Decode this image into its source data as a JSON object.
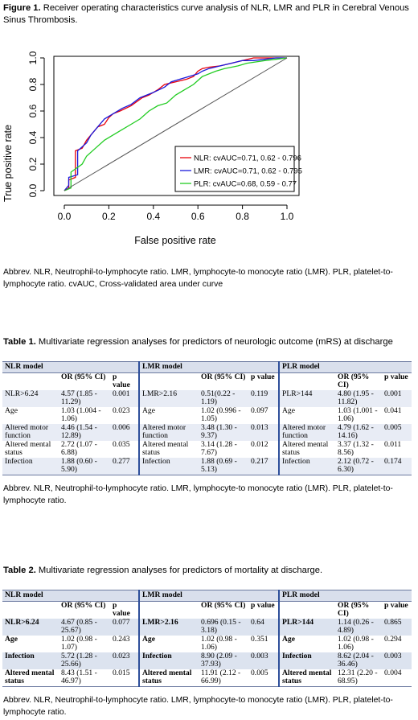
{
  "figure1": {
    "label": "Figure 1.",
    "text": " Receiver operating characteristics curve analysis of NLR, LMR and PLR in Cerebral Venous Sinus Thrombosis."
  },
  "chart_data": {
    "type": "line",
    "xlabel": "False positive rate",
    "ylabel": "True positive rate",
    "xlim": [
      0,
      1
    ],
    "ylim": [
      0,
      1
    ],
    "xticks": [
      "0.0",
      "0.2",
      "0.4",
      "0.6",
      "0.8",
      "1.0"
    ],
    "yticks": [
      "0.0",
      "0.2",
      "0.4",
      "0.6",
      "0.8",
      "1.0"
    ],
    "legend_placement": "bottom-right",
    "grid": false,
    "series": [
      {
        "name": "NLR: cvAUC=0.71, 0.62 - 0.796",
        "color": "#e8000b",
        "x": [
          0,
          0.02,
          0.02,
          0.05,
          0.05,
          0.08,
          0.1,
          0.12,
          0.15,
          0.18,
          0.2,
          0.22,
          0.25,
          0.3,
          0.35,
          0.38,
          0.42,
          0.45,
          0.5,
          0.55,
          0.58,
          0.6,
          0.62,
          0.65,
          0.7,
          0.75,
          0.8,
          0.85,
          0.9,
          0.95,
          1.0
        ],
        "y": [
          0,
          0.02,
          0.08,
          0.1,
          0.3,
          0.32,
          0.38,
          0.42,
          0.48,
          0.5,
          0.55,
          0.58,
          0.6,
          0.64,
          0.7,
          0.72,
          0.76,
          0.8,
          0.82,
          0.84,
          0.86,
          0.9,
          0.92,
          0.93,
          0.94,
          0.96,
          0.98,
          1.0,
          1.0,
          1.0,
          1.0
        ]
      },
      {
        "name": "LMR: cvAUC=0.71, 0.62 - 0.795",
        "color": "#1a1adc",
        "x": [
          0,
          0.02,
          0.02,
          0.06,
          0.06,
          0.1,
          0.12,
          0.15,
          0.18,
          0.22,
          0.26,
          0.3,
          0.34,
          0.4,
          0.45,
          0.48,
          0.52,
          0.56,
          0.6,
          0.62,
          0.65,
          0.7,
          0.75,
          0.8,
          0.85,
          0.9,
          0.95,
          1.0
        ],
        "y": [
          0,
          0.04,
          0.1,
          0.12,
          0.3,
          0.36,
          0.42,
          0.48,
          0.54,
          0.58,
          0.62,
          0.65,
          0.7,
          0.74,
          0.78,
          0.82,
          0.84,
          0.86,
          0.88,
          0.9,
          0.92,
          0.94,
          0.96,
          0.98,
          0.98,
          0.99,
          1.0,
          1.0
        ]
      },
      {
        "name": "PLR: cvAUC=0.68, 0.59 - 0.77",
        "color": "#22cc22",
        "x": [
          0,
          0.03,
          0.03,
          0.08,
          0.1,
          0.14,
          0.18,
          0.22,
          0.26,
          0.3,
          0.34,
          0.38,
          0.42,
          0.46,
          0.5,
          0.54,
          0.58,
          0.62,
          0.68,
          0.72,
          0.78,
          0.82,
          0.86,
          0.9,
          0.95,
          1.0
        ],
        "y": [
          0,
          0.02,
          0.14,
          0.2,
          0.26,
          0.32,
          0.38,
          0.42,
          0.46,
          0.5,
          0.54,
          0.6,
          0.64,
          0.66,
          0.72,
          0.76,
          0.8,
          0.86,
          0.9,
          0.92,
          0.94,
          0.96,
          0.97,
          0.98,
          0.99,
          1.0
        ]
      },
      {
        "name": "",
        "color": "#555555",
        "x": [
          0,
          1
        ],
        "y": [
          0,
          1
        ]
      }
    ]
  },
  "abbrev_fig": "Abbrev. NLR, Neutrophil-to-lymphocyte ratio. LMR, lymphocyte-to monocyte ratio (LMR). PLR, platelet-to-lymphocyte ratio. cvAUC, Cross-validated area under curve",
  "table1": {
    "label": "Table 1.",
    "caption": " Multivariate regression analyses for predictors of neurologic outcome (mRS) at discharge",
    "groups": [
      "NLR model",
      "LMR model",
      "PLR model"
    ],
    "hdr_or": "OR (95% CI)",
    "hdr_p": "p value",
    "rows": [
      [
        [
          "NLR>6.24",
          "4.57 (1.85 - 11.29)",
          "0.001"
        ],
        [
          "LMR>2.16",
          "0.51(0.22 - 1.19)",
          "0.119"
        ],
        [
          "PLR>144",
          "4.80 (1.95 - 11.82)",
          "0.001"
        ]
      ],
      [
        [
          "Age",
          "1.03 (1.004 - 1.06)",
          "0.023"
        ],
        [
          "Age",
          "1.02 (0.996 - 1.05)",
          "0.097"
        ],
        [
          "Age",
          "1.03 (1.001 - 1.06)",
          "0.041"
        ]
      ],
      [
        [
          "Altered motor function",
          "4.46 (1.54 - 12.89)",
          "0.006"
        ],
        [
          "Altered motor function",
          "3.48 (1.30 - 9.37)",
          "0.013"
        ],
        [
          "Altered motor function",
          "4.79 (1.62 - 14.16)",
          "0.005"
        ]
      ],
      [
        [
          "Altered mental status",
          "2.72 (1.07 - 6.88)",
          "0.035"
        ],
        [
          "Altered mental status",
          "3.14 (1.28 - 7.67)",
          "0.012"
        ],
        [
          "Altered mental status",
          "3.37 (1.32 - 8.56)",
          "0.011"
        ]
      ],
      [
        [
          "Infection",
          "1.88 (0.60 - 5.90)",
          "0.277"
        ],
        [
          "Infection",
          "1.88 (0.69 - 5.13)",
          "0.217"
        ],
        [
          "Infection",
          "2.12 (0.72 - 6.30)",
          "0.174"
        ]
      ]
    ],
    "abbrev": "Abbrev. NLR, Neutrophil-to-lymphocyte ratio. LMR, lymphocyte-to monocyte ratio (LMR). PLR, platelet-to-lymphocyte ratio."
  },
  "table2": {
    "label": "Table 2.",
    "caption": " Multivariate regression analyses for predictors of mortality at discharge.",
    "groups": [
      "NLR model",
      "LMR model",
      "PLR model"
    ],
    "hdr_or": "OR (95% CI)",
    "hdr_p": "p value",
    "rows": [
      [
        [
          "NLR>6.24",
          "4.67 (0.85 - 25.67)",
          "0.077"
        ],
        [
          "LMR>2.16",
          "0.696 (0.15 - 3.18)",
          "0.64"
        ],
        [
          "PLR>144",
          "1.14 (0.26 - 4.89)",
          "0.865"
        ]
      ],
      [
        [
          "Age",
          "1.02 (0.98 - 1.07)",
          "0.243"
        ],
        [
          "Age",
          "1.02 (0.98 - 1.06)",
          "0.351"
        ],
        [
          "Age",
          "1.02 (0.98 - 1.06)",
          "0.294"
        ]
      ],
      [
        [
          "Infection",
          "5.72 (1.28 - 25.66)",
          "0.023"
        ],
        [
          "Infection",
          "8.90 (2.09 - 37.93)",
          "0.003"
        ],
        [
          "Infection",
          "8.62 (2.04 - 36.46)",
          "0.003"
        ]
      ],
      [
        [
          "Altered mental status",
          "8.43 (1.51 - 46.97)",
          "0.015"
        ],
        [
          "Altered mental status",
          "11.91 (2.12 - 66.99)",
          "0.005"
        ],
        [
          "Altered mental status",
          "12.31 (2.20 - 68.95)",
          "0.004"
        ]
      ]
    ],
    "abbrev": "Abbrev. NLR, Neutrophil-to-lymphocyte ratio. LMR, lymphocyte-to monocyte ratio (LMR). PLR, platelet-to-lymphocyte ratio."
  }
}
